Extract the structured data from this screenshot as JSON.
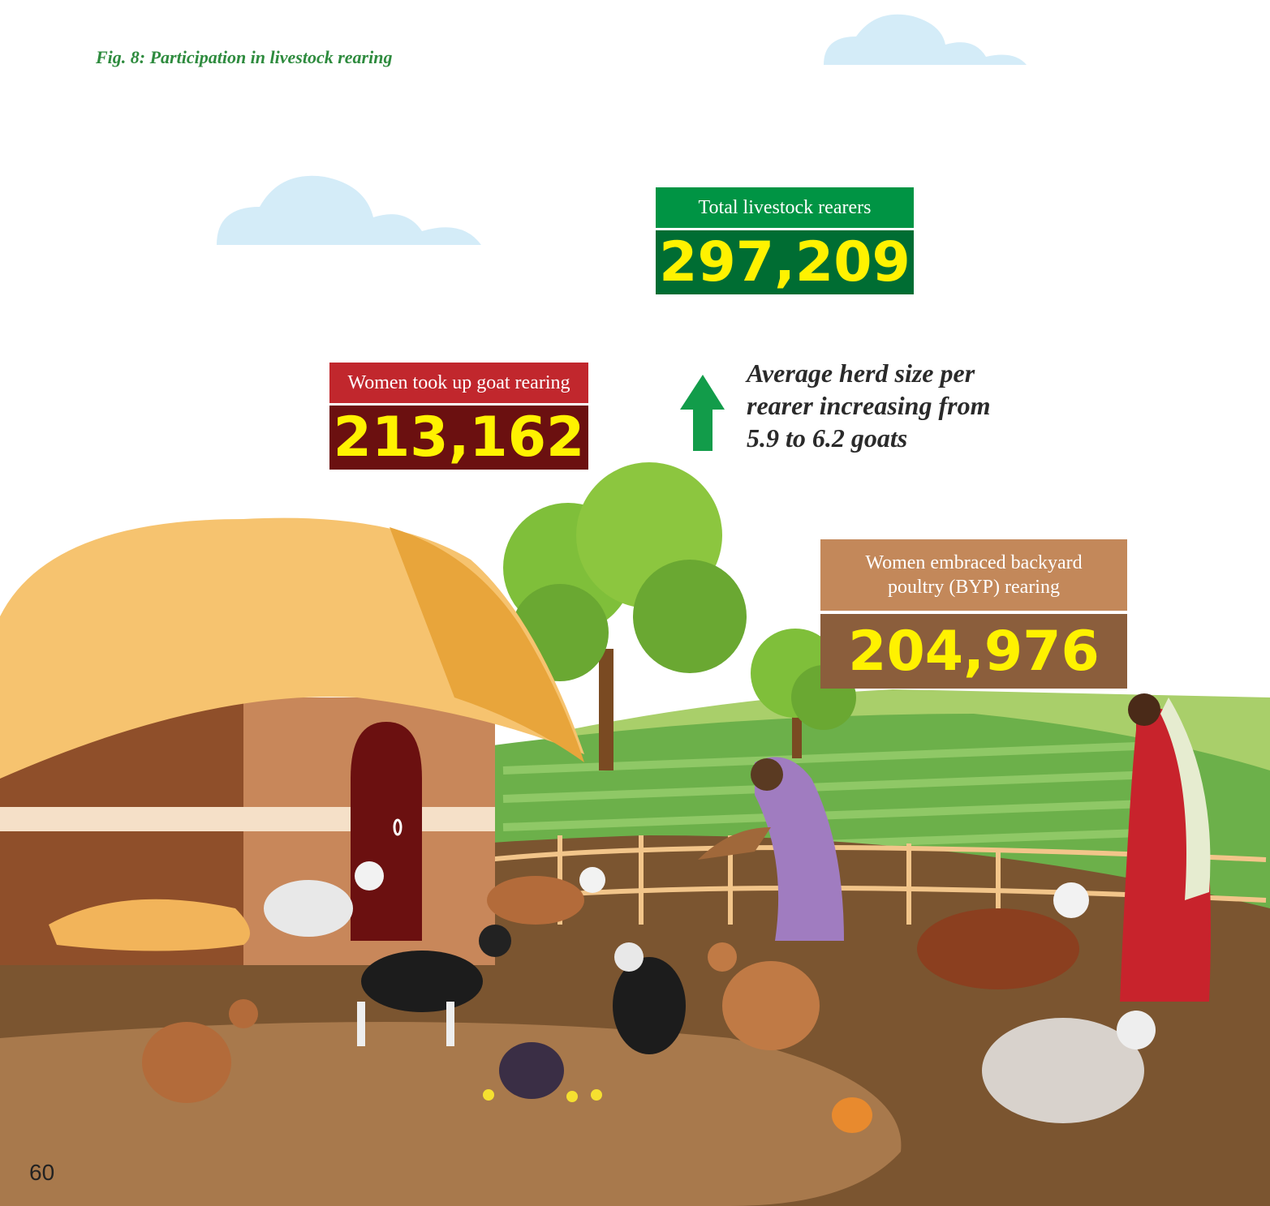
{
  "caption": "Fig. 8: Participation in livestock rearing",
  "stats": [
    {
      "label": "Total livestock rearers",
      "value": "297,209"
    },
    {
      "label": "Women took up goat rearing",
      "value": "213,162"
    },
    {
      "label": "Women embraced backyard poultry (BYP) rearing",
      "value": "204,976"
    }
  ],
  "note": "Average herd size per rearer increasing from 5.9 to 6.2 goats",
  "page_number": "60"
}
